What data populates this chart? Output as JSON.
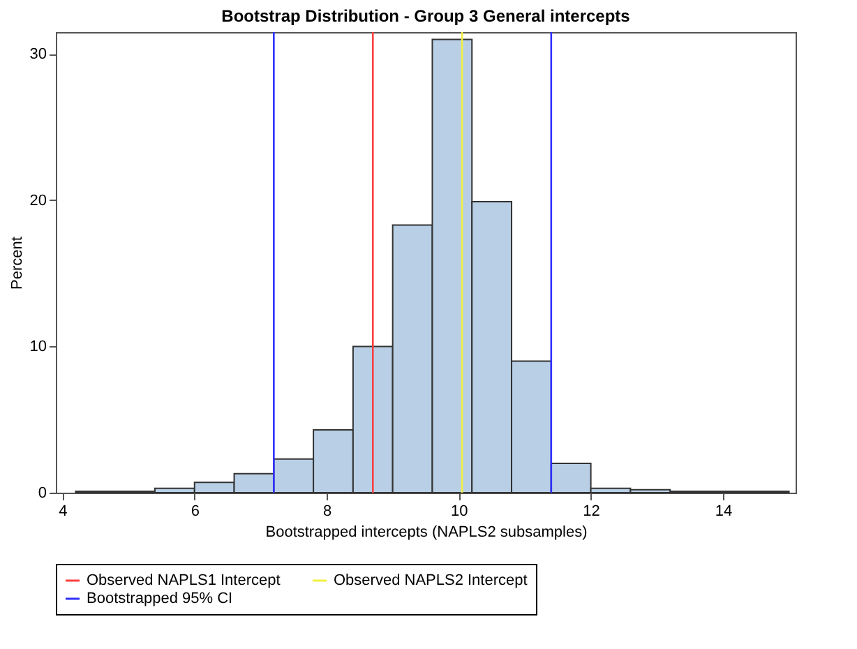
{
  "chart_data": {
    "type": "histogram",
    "title": "Bootstrap Distribution - Group 3 General intercepts",
    "xlabel": "Bootstrapped intercepts (NAPLS2 subsamples)",
    "ylabel": "Percent",
    "bins": [
      4.2,
      4.8,
      5.4,
      6.0,
      6.6,
      7.2,
      7.8,
      8.4,
      9.0,
      9.6,
      10.2,
      10.8,
      11.4,
      12.0,
      12.6,
      13.2,
      13.8,
      14.4,
      15.0
    ],
    "values": [
      0.1,
      0.1,
      0.3,
      0.7,
      1.3,
      2.3,
      4.3,
      10,
      18.3,
      31,
      19.9,
      9,
      2,
      0.3,
      0.2,
      0.1,
      0.1,
      0.1
    ],
    "color": "#b9cfe6",
    "xlim": [
      3.9,
      15.1
    ],
    "xticks": [
      4,
      6,
      8,
      10,
      12,
      14
    ],
    "ylim": [
      0,
      31.5
    ],
    "yticks": [
      0,
      10,
      20,
      30
    ],
    "ref_lines": [
      {
        "axis": "x",
        "value": 8.7,
        "label": "Observed NAPLS1 Intercept",
        "color": "#ff4040"
      },
      {
        "axis": "x",
        "value": 10.05,
        "label": "Observed NAPLS2 Intercept",
        "color": "#f0f040"
      },
      {
        "axis": "x",
        "value": 7.2,
        "label": "Bootstrapped 95% CI",
        "color": "#3030ff"
      },
      {
        "axis": "x",
        "value": 11.4,
        "label": null,
        "color": "#3030ff"
      }
    ],
    "grid": false,
    "legend": "bottom"
  }
}
